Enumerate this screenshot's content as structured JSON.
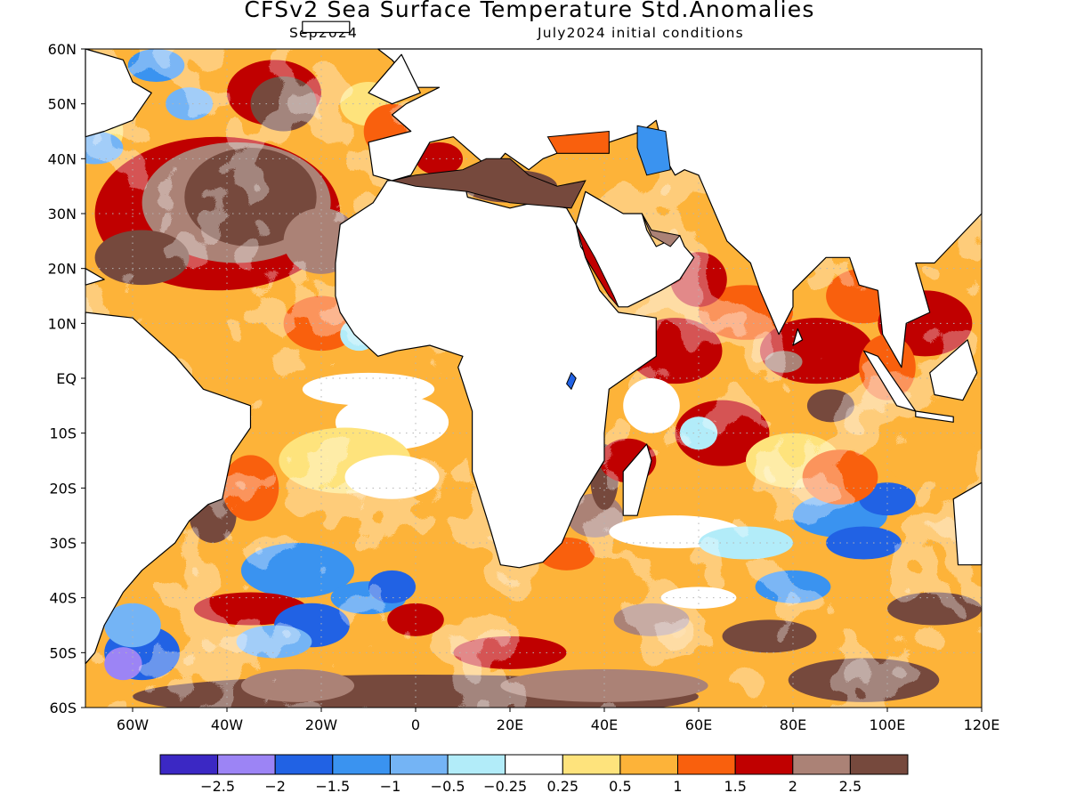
{
  "title": "CFSv2 Sea Surface Temperature Std.Anomalies",
  "subtitle_left": "Sep2024",
  "subtitle_right": "July2024 initial conditions",
  "lat_labels": [
    "60N",
    "50N",
    "40N",
    "30N",
    "20N",
    "10N",
    "EQ",
    "10S",
    "20S",
    "30S",
    "40S",
    "50S",
    "60S"
  ],
  "lat_values": [
    60,
    50,
    40,
    30,
    20,
    10,
    0,
    -10,
    -20,
    -30,
    -40,
    -50,
    -60
  ],
  "lon_labels": [
    "60W",
    "40W",
    "20W",
    "0",
    "20E",
    "40E",
    "60E",
    "80E",
    "100E",
    "120E"
  ],
  "lon_values": [
    -60,
    -40,
    -20,
    0,
    20,
    40,
    60,
    80,
    100,
    120
  ],
  "colorbar": {
    "labels": [
      "-2.5",
      "-2",
      "-1.5",
      "-1",
      "-0.5",
      "-0.25",
      "0.25",
      "0.5",
      "1",
      "1.5",
      "2",
      "2.5"
    ],
    "colors": [
      "#3b28c4",
      "#9c84f5",
      "#2162e4",
      "#3a93f0",
      "#74b4f5",
      "#b2ecf9",
      "#ffffff",
      "#fee37c",
      "#fdb339",
      "#f9600d",
      "#c00000",
      "#ab8276",
      "#76493d"
    ]
  },
  "colors": {
    "land": "#ffffff",
    "coast": "#000000",
    "grid": "#b4b4b4"
  }
}
